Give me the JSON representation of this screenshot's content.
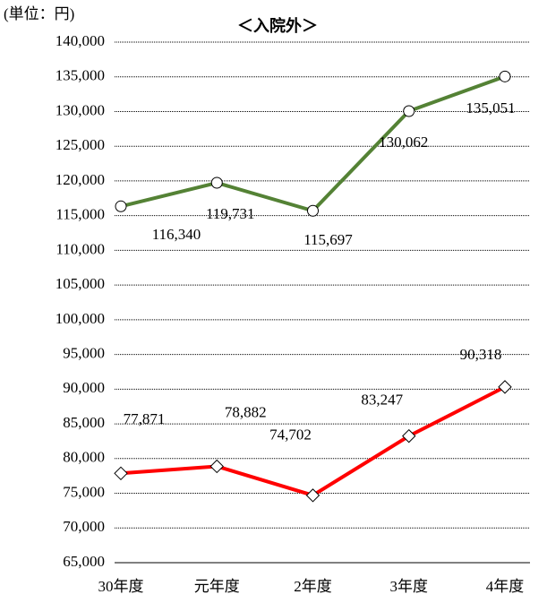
{
  "chart_data": {
    "type": "line",
    "title": "＜入院外＞",
    "unit_label": "(単位：円)",
    "categories": [
      "30年度",
      "元年度",
      "2年度",
      "3年度",
      "4年度"
    ],
    "series": [
      {
        "color": "#548235",
        "marker": "circle",
        "values": [
          116340,
          119731,
          115697,
          130062,
          135051
        ],
        "value_labels": [
          "116,340",
          "119,731",
          "115,697",
          "130,062",
          "135,051"
        ]
      },
      {
        "color": "#ff0000",
        "marker": "diamond",
        "values": [
          77871,
          78882,
          74702,
          83247,
          90318
        ],
        "value_labels": [
          "77,871",
          "78,882",
          "74,702",
          "83,247",
          "90,318"
        ]
      }
    ],
    "ylim": [
      65000,
      140000
    ],
    "yticks": [
      {
        "value": 65000,
        "label": "65,000"
      },
      {
        "value": 70000,
        "label": "70,000"
      },
      {
        "value": 75000,
        "label": "75,000"
      },
      {
        "value": 80000,
        "label": "80,000"
      },
      {
        "value": 85000,
        "label": "85,000"
      },
      {
        "value": 90000,
        "label": "90,000"
      },
      {
        "value": 95000,
        "label": "95,000"
      },
      {
        "value": 100000,
        "label": "100,000"
      },
      {
        "value": 105000,
        "label": "105,000"
      },
      {
        "value": 110000,
        "label": "110,000"
      },
      {
        "value": 115000,
        "label": "115,000"
      },
      {
        "value": 120000,
        "label": "120,000"
      },
      {
        "value": 125000,
        "label": "125,000"
      },
      {
        "value": 130000,
        "label": "130,000"
      },
      {
        "value": 135000,
        "label": "135,000"
      },
      {
        "value": 140000,
        "label": "140,000"
      }
    ],
    "grid": true
  }
}
